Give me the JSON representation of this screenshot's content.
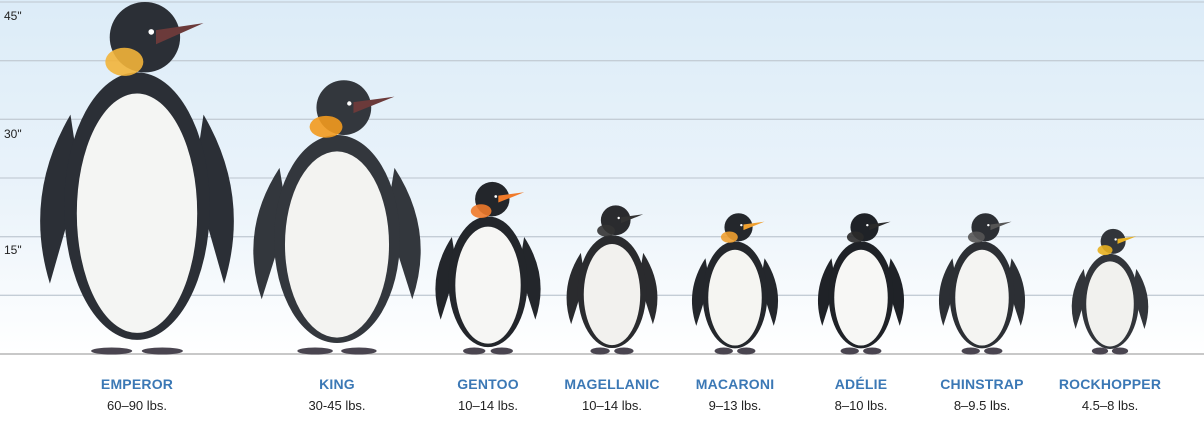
{
  "chart_data": {
    "type": "bar",
    "title": "",
    "xlabel": "",
    "ylabel": "",
    "ylim": [
      0,
      45
    ],
    "y_ticks": [
      "15\"",
      "30\"",
      "45\""
    ],
    "grid": true,
    "categories": [
      "EMPEROR",
      "KING",
      "GENTOO",
      "MAGELLANIC",
      "MACARONI",
      "ADÉLIE",
      "CHINSTRAP",
      "ROCKHOPPER"
    ],
    "weights": [
      "60–90 lbs.",
      "30-45 lbs.",
      "10–14 lbs.",
      "10–14 lbs.",
      "9–13 lbs.",
      "8–10 lbs.",
      "8–9.5 lbs.",
      "4.5–8 lbs."
    ],
    "values": [
      45,
      35,
      22,
      19,
      18,
      18,
      18,
      16
    ]
  }
}
